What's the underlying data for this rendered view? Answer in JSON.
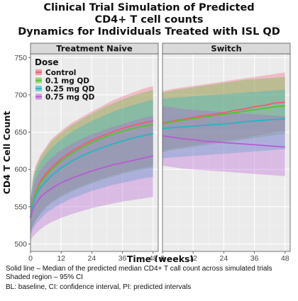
{
  "title_lines": [
    "Clinical Trial Simulation of Predicted",
    "CD4+ T cell counts",
    "Dynamics for Individuals Treated with ISL QD"
  ],
  "footnotes": [
    "Solid line – Median of the predicted median CD4+ T call count across simulated trials",
    "Shaded region – 95% CI",
    "BL: baseline, CI: confidence interval, PI: predicted intervals"
  ],
  "chart_data": {
    "type": "line",
    "xlabel": "Time (weeks)",
    "ylabel": "CD4 T Cell Count",
    "xlim": [
      0,
      50
    ],
    "ylim": [
      490,
      755
    ],
    "xticks": [
      0,
      12,
      24,
      36,
      48
    ],
    "yticks": [
      500,
      550,
      600,
      650,
      700,
      750
    ],
    "grid": true,
    "legend": {
      "title": "Dose",
      "placement": "top-left"
    },
    "panels": [
      {
        "label": "Treatment Naive",
        "x": [
          0,
          1,
          2,
          4,
          6,
          8,
          12,
          16,
          20,
          24,
          28,
          32,
          36,
          40,
          44,
          48
        ],
        "series": [
          {
            "name": "Control",
            "color": "#f05a78",
            "median": [
              535,
              558,
              570,
              585,
              594,
              602,
              614,
              624,
              632,
              639,
              645,
              650,
              655,
              659,
              662,
              665
            ],
            "lower": [
              515,
              525,
              532,
              542,
              550,
              556,
              565,
              572,
              578,
              583,
              588,
              592,
              596,
              599,
              602,
              605
            ],
            "upper": [
              560,
              590,
              605,
              620,
              630,
              640,
              652,
              662,
              670,
              678,
              685,
              692,
              698,
              703,
              708,
              712
            ]
          },
          {
            "name": "0.1 mg QD",
            "color": "#5bbf2b",
            "median": [
              535,
              556,
              568,
              582,
              591,
              599,
              611,
              621,
              629,
              636,
              642,
              647,
              651,
              655,
              658,
              660
            ],
            "lower": [
              515,
              524,
              531,
              540,
              548,
              554,
              563,
              570,
              576,
              581,
              586,
              590,
              594,
              597,
              600,
              602
            ],
            "upper": [
              560,
              588,
              602,
              617,
              627,
              637,
              649,
              659,
              667,
              675,
              682,
              688,
              694,
              699,
              703,
              707
            ]
          },
          {
            "name": "0.25 mg QD",
            "color": "#21b7c4",
            "median": [
              535,
              553,
              564,
              576,
              584,
              591,
              602,
              611,
              618,
              624,
              629,
              634,
              638,
              642,
              645,
              648
            ],
            "lower": [
              512,
              520,
              526,
              534,
              541,
              546,
              554,
              561,
              566,
              571,
              575,
              579,
              582,
              585,
              588,
              590
            ],
            "upper": [
              558,
              584,
              597,
              611,
              620,
              628,
              640,
              650,
              658,
              665,
              671,
              677,
              682,
              686,
              690,
              694
            ]
          },
          {
            "name": "0.75 mg QD",
            "color": "#b85ad6",
            "median": [
              535,
              547,
              554,
              563,
              569,
              574,
              582,
              588,
              593,
              598,
              602,
              606,
              609,
              612,
              615,
              618
            ],
            "lower": [
              505,
              510,
              514,
              520,
              525,
              529,
              535,
              540,
              544,
              548,
              551,
              554,
              557,
              559,
              561,
              563
            ],
            "upper": [
              555,
              576,
              588,
              600,
              608,
              615,
              626,
              634,
              641,
              647,
              652,
              657,
              661,
              665,
              669,
              672
            ]
          }
        ]
      },
      {
        "label": "Switch",
        "x": [
          0,
          4,
          8,
          12,
          16,
          20,
          24,
          28,
          32,
          36,
          40,
          44,
          48
        ],
        "series": [
          {
            "name": "Control",
            "color": "#f05a78",
            "median": [
              662,
              665,
              667,
              670,
              672,
              674,
              676,
              679,
              681,
              684,
              686,
              689,
              690
            ],
            "lower": [
              625,
              628,
              630,
              632,
              634,
              636,
              638,
              640,
              642,
              645,
              647,
              650,
              652
            ],
            "upper": [
              705,
              708,
              710,
              712,
              714,
              716,
              718,
              720,
              722,
              724,
              726,
              728,
              730
            ]
          },
          {
            "name": "0.1 mg QD",
            "color": "#5bbf2b",
            "median": [
              661,
              664,
              666,
              668,
              670,
              672,
              674,
              676,
              678,
              680,
              682,
              684,
              685
            ],
            "lower": [
              623,
              626,
              628,
              630,
              632,
              634,
              636,
              638,
              640,
              642,
              644,
              646,
              648
            ],
            "upper": [
              703,
              706,
              708,
              710,
              712,
              714,
              716,
              718,
              720,
              721,
              722,
              723,
              724
            ]
          },
          {
            "name": "0.25 mg QD",
            "color": "#21b7c4",
            "median": [
              655,
              656,
              657,
              658,
              659,
              660,
              661,
              662,
              664,
              665,
              666,
              667,
              668
            ],
            "lower": [
              615,
              616,
              617,
              618,
              619,
              620,
              621,
              622,
              623,
              624,
              625,
              626,
              627
            ],
            "upper": [
              695,
              696,
              697,
              698,
              699,
              700,
              701,
              702,
              703,
              704,
              705,
              706,
              707
            ]
          },
          {
            "name": "0.75 mg QD",
            "color": "#b85ad6",
            "median": [
              645,
              643,
              641,
              640,
              638,
              637,
              636,
              635,
              634,
              633,
              632,
              631,
              630
            ],
            "lower": [
              605,
              603,
              601,
              600,
              599,
              598,
              597,
              596,
              595,
              594,
              593,
              592,
              591
            ],
            "upper": [
              685,
              683,
              681,
              680,
              679,
              678,
              677,
              676,
              675,
              674,
              673,
              672,
              671
            ]
          }
        ]
      }
    ]
  }
}
